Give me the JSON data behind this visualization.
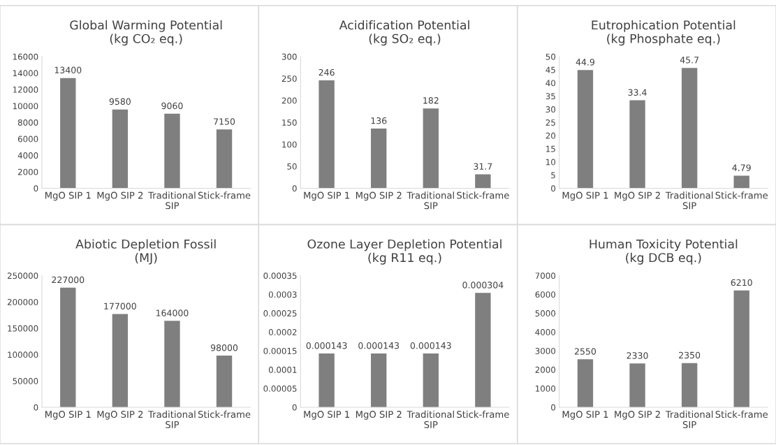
{
  "chart_data": [
    {
      "type": "bar",
      "title": "Global Warming Potential\n(kg CO₂ eq.)",
      "categories": [
        "MgO SIP 1",
        "MgO SIP 2",
        "Traditional\nSIP",
        "Stick-frame"
      ],
      "values": [
        13400,
        9580,
        9060,
        7150
      ],
      "color": "#7f7f7f",
      "ylim": [
        0,
        16000
      ],
      "yticks": [
        0,
        2000,
        4000,
        6000,
        8000,
        10000,
        12000,
        14000,
        16000
      ],
      "data_labels": true
    },
    {
      "type": "bar",
      "title": "Acidification Potential\n(kg SO₂ eq.)",
      "categories": [
        "MgO SIP 1",
        "MgO SIP 2",
        "Traditional\nSIP",
        "Stick-frame"
      ],
      "values": [
        246,
        136,
        182,
        31.7
      ],
      "color": "#7f7f7f",
      "ylim": [
        0,
        300
      ],
      "yticks": [
        0,
        50,
        100,
        150,
        200,
        250,
        300
      ],
      "data_labels": true
    },
    {
      "type": "bar",
      "title": "Eutrophication Potential\n(kg Phosphate eq.)",
      "categories": [
        "MgO SIP 1",
        "MgO SIP 2",
        "Traditional\nSIP",
        "Stick-frame"
      ],
      "values": [
        44.9,
        33.4,
        45.7,
        4.79
      ],
      "color": "#7f7f7f",
      "ylim": [
        0,
        50
      ],
      "yticks": [
        0,
        5,
        10,
        15,
        20,
        25,
        30,
        35,
        40,
        45,
        50
      ],
      "data_labels": true
    },
    {
      "type": "bar",
      "title": "Abiotic Depletion Fossil\n(MJ)",
      "categories": [
        "MgO SIP 1",
        "MgO SIP 2",
        "Traditional\nSIP",
        "Stick-frame"
      ],
      "values": [
        227000,
        177000,
        164000,
        98000
      ],
      "color": "#7f7f7f",
      "ylim": [
        0,
        250000
      ],
      "yticks": [
        0,
        50000,
        100000,
        150000,
        200000,
        250000
      ],
      "data_labels": true
    },
    {
      "type": "bar",
      "title": "Ozone Layer Depletion Potential\n(kg R11 eq.)",
      "categories": [
        "MgO SIP 1",
        "MgO SIP 2",
        "Traditional\nSIP",
        "Stick-frame"
      ],
      "values": [
        0.000143,
        0.000143,
        0.000143,
        0.000304
      ],
      "color": "#7f7f7f",
      "ylim": [
        0,
        0.00035
      ],
      "yticks": [
        0,
        {
          "value": 5e-05,
          "label": "0.00005"
        },
        {
          "value": 0.0001,
          "label": "0.0001"
        },
        {
          "value": 0.00015,
          "label": "0.00015"
        },
        {
          "value": 0.0002,
          "label": "0.0002"
        },
        {
          "value": 0.00025,
          "label": "0.00025"
        },
        {
          "value": 0.0003,
          "label": "0.0003"
        },
        {
          "value": 0.00035,
          "label": "0.00035"
        }
      ],
      "data_labels": true
    },
    {
      "type": "bar",
      "title": "Human Toxicity Potential\n(kg DCB eq.)",
      "categories": [
        "MgO SIP 1",
        "MgO SIP 2",
        "Traditional\nSIP",
        "Stick-frame"
      ],
      "values": [
        2550,
        2330,
        2350,
        6210
      ],
      "color": "#7f7f7f",
      "ylim": [
        0,
        7000
      ],
      "yticks": [
        0,
        1000,
        2000,
        3000,
        4000,
        5000,
        6000,
        7000
      ],
      "data_labels": true
    }
  ]
}
